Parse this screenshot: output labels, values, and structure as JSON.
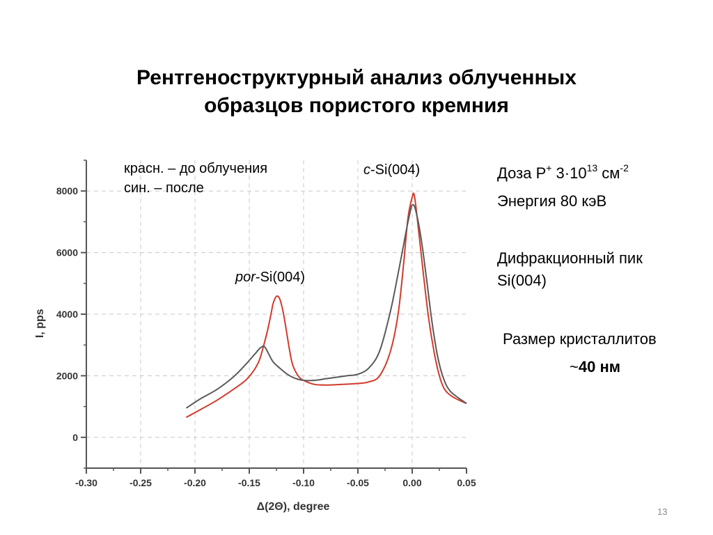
{
  "slide": {
    "title_line1": "Рентгеноструктурный анализ облученных",
    "title_line2": "образцов пористого кремния",
    "page_number": "13"
  },
  "annotations": {
    "legend_line1": "красн. – до облучения",
    "legend_line2": "син. – после",
    "c_peak_prefix": "c",
    "c_peak_rest": "-Si(004)",
    "por_peak_prefix": "por",
    "por_peak_rest": "-Si(004)"
  },
  "info": {
    "dose_label": "Доза P",
    "dose_ion_charge": "+",
    "dose_value": " 3·10",
    "dose_exp": "13",
    "dose_unit": " см",
    "dose_unit_exp": "-2",
    "energy": "Энергия 80 кэВ",
    "diffraction_line1": "Дифракционный пик",
    "diffraction_line2": "Si(004)",
    "crystallite_label": "Размер кристаллитов",
    "crystallite_prefix": "~",
    "crystallite_value": "40 нм"
  },
  "chart_data": {
    "type": "line",
    "xlabel": "Δ(2Θ), degree",
    "ylabel": "I, pps",
    "xlim": [
      -0.3,
      0.05
    ],
    "ylim": [
      -1000,
      9000
    ],
    "x_ticks": [
      -0.3,
      -0.25,
      -0.2,
      -0.15,
      -0.1,
      -0.05,
      0.0,
      0.05
    ],
    "x_tick_labels": [
      "-0.30",
      "-0.25",
      "-0.20",
      "-0.15",
      "-0.10",
      "-0.05",
      "0.00",
      "0.05"
    ],
    "y_ticks": [
      0,
      2000,
      4000,
      6000,
      8000
    ],
    "y_tick_labels": [
      "0",
      "2000",
      "4000",
      "6000",
      "8000"
    ],
    "grid": true,
    "colors": {
      "red": "#d23a2a",
      "gray": "#5a5a5a",
      "grid": "#c8c8c8",
      "axis": "#555555"
    },
    "series": [
      {
        "color": "red",
        "x": [
          -0.208,
          -0.195,
          -0.18,
          -0.165,
          -0.152,
          -0.142,
          -0.137,
          -0.133,
          -0.13,
          -0.128,
          -0.125,
          -0.122,
          -0.119,
          -0.116,
          -0.113,
          -0.11,
          -0.105,
          -0.1,
          -0.09,
          -0.08,
          -0.07,
          -0.05,
          -0.04,
          -0.03,
          -0.02,
          -0.013,
          -0.008,
          -0.004,
          0.0,
          0.002,
          0.005,
          0.01,
          0.015,
          0.02,
          0.025,
          0.03,
          0.038,
          0.05
        ],
        "y": [
          650,
          900,
          1200,
          1550,
          1900,
          2400,
          2950,
          3500,
          4000,
          4350,
          4580,
          4500,
          4100,
          3500,
          2850,
          2350,
          2000,
          1850,
          1720,
          1700,
          1710,
          1750,
          1800,
          2000,
          2800,
          4000,
          5600,
          7100,
          7800,
          7850,
          7000,
          5400,
          3900,
          2800,
          2000,
          1550,
          1300,
          1100
        ]
      },
      {
        "color": "gray",
        "x": [
          -0.208,
          -0.195,
          -0.18,
          -0.165,
          -0.155,
          -0.145,
          -0.14,
          -0.137,
          -0.135,
          -0.132,
          -0.128,
          -0.122,
          -0.115,
          -0.108,
          -0.1,
          -0.09,
          -0.08,
          -0.07,
          -0.06,
          -0.05,
          -0.04,
          -0.03,
          -0.02,
          -0.012,
          -0.005,
          -0.002,
          0.0,
          0.003,
          0.008,
          0.013,
          0.018,
          0.023,
          0.028,
          0.035,
          0.05
        ],
        "y": [
          950,
          1250,
          1550,
          1950,
          2300,
          2700,
          2900,
          2960,
          2900,
          2700,
          2450,
          2250,
          2050,
          1920,
          1850,
          1850,
          1900,
          1950,
          2000,
          2050,
          2250,
          2800,
          4100,
          5500,
          6800,
          7300,
          7550,
          7400,
          6500,
          5200,
          3800,
          2700,
          2000,
          1500,
          1100
        ]
      }
    ]
  }
}
